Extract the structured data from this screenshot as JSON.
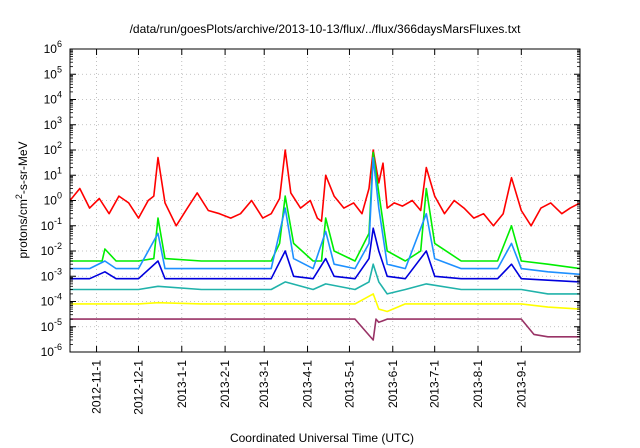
{
  "chart_data": {
    "type": "line",
    "title": "/data/run/goesPlots/archive/2013-10-13/flux/../flux/366daysMarsFluxes.txt",
    "xlabel": "Coordinated Universal Time (UTC)",
    "ylabel": "protons/cm2-s-sr-MeV",
    "ylabel_parts": {
      "base": "protons/cm",
      "sup": "2",
      "rest": "-s-sr-MeV"
    },
    "y_scale": "log",
    "ylim": [
      1e-06,
      1000000.0
    ],
    "y_ticks": [
      {
        "exp": -6,
        "label": "10",
        "sup": "-6"
      },
      {
        "exp": -5,
        "label": "10",
        "sup": "-5"
      },
      {
        "exp": -4,
        "label": "10",
        "sup": "-4"
      },
      {
        "exp": -3,
        "label": "10",
        "sup": "-3"
      },
      {
        "exp": -2,
        "label": "10",
        "sup": "-2"
      },
      {
        "exp": -1,
        "label": "10",
        "sup": "-1"
      },
      {
        "exp": 0,
        "label": "10",
        "sup": "0"
      },
      {
        "exp": 1,
        "label": "10",
        "sup": "1"
      },
      {
        "exp": 2,
        "label": "10",
        "sup": "2"
      },
      {
        "exp": 3,
        "label": "10",
        "sup": "3"
      },
      {
        "exp": 4,
        "label": "10",
        "sup": "4"
      },
      {
        "exp": 5,
        "label": "10",
        "sup": "5"
      },
      {
        "exp": 6,
        "label": "10",
        "sup": "6"
      }
    ],
    "xlim": [
      "2012-10-13",
      "2013-10-13"
    ],
    "x_ticks": [
      "2012-11-1",
      "2012-12-1",
      "2013-1-1",
      "2013-2-1",
      "2013-3-1",
      "2013-4-1",
      "2013-5-1",
      "2013-6-1",
      "2013-7-1",
      "2013-8-1",
      "2013-9-1"
    ],
    "grid": true,
    "legend": "none",
    "series_note": "Seven proton flux channels, values approximate (log scale), sampled about every 5 days; spikes at solar events.",
    "series": [
      {
        "color": "#ff0000",
        "x": [
          "2012-10-13",
          "2012-10-20",
          "2012-10-27",
          "2012-11-03",
          "2012-11-10",
          "2012-11-17",
          "2012-11-24",
          "2012-12-01",
          "2012-12-08",
          "2012-12-12",
          "2012-12-15",
          "2012-12-20",
          "2012-12-28",
          "2013-01-05",
          "2013-01-12",
          "2013-01-20",
          "2013-01-28",
          "2013-02-05",
          "2013-02-12",
          "2013-02-20",
          "2013-02-28",
          "2013-03-06",
          "2013-03-12",
          "2013-03-16",
          "2013-03-20",
          "2013-03-27",
          "2013-04-03",
          "2013-04-08",
          "2013-04-11",
          "2013-04-14",
          "2013-04-20",
          "2013-04-27",
          "2013-05-04",
          "2013-05-10",
          "2013-05-15",
          "2013-05-18",
          "2013-05-22",
          "2013-05-25",
          "2013-05-28",
          "2013-06-02",
          "2013-06-08",
          "2013-06-15",
          "2013-06-21",
          "2013-06-25",
          "2013-07-01",
          "2013-07-08",
          "2013-07-15",
          "2013-07-22",
          "2013-07-29",
          "2013-08-05",
          "2013-08-12",
          "2013-08-19",
          "2013-08-25",
          "2013-09-01",
          "2013-09-08",
          "2013-09-15",
          "2013-09-22",
          "2013-09-30",
          "2013-10-06",
          "2013-10-13"
        ],
        "y": [
          1.0,
          3.0,
          0.5,
          1.2,
          0.3,
          1.5,
          0.8,
          0.2,
          1.0,
          1.5,
          50,
          0.8,
          0.1,
          0.5,
          2.0,
          0.4,
          0.3,
          0.2,
          0.3,
          1.0,
          0.2,
          0.3,
          1.2,
          100,
          2.0,
          0.5,
          1.0,
          0.2,
          0.15,
          10,
          1.5,
          0.5,
          0.8,
          0.3,
          3.0,
          100,
          5.0,
          30,
          0.5,
          0.8,
          0.6,
          1.0,
          0.4,
          20,
          1.5,
          0.3,
          1.0,
          0.5,
          0.2,
          0.3,
          0.1,
          0.3,
          8.0,
          0.4,
          0.1,
          0.5,
          0.8,
          0.3,
          0.5,
          0.8
        ]
      },
      {
        "color": "#00ee00",
        "x": [
          "2012-10-13",
          "2012-10-27",
          "2012-11-05",
          "2012-11-07",
          "2012-11-15",
          "2012-12-01",
          "2012-12-12",
          "2012-12-15",
          "2012-12-20",
          "2013-01-15",
          "2013-02-01",
          "2013-03-06",
          "2013-03-12",
          "2013-03-16",
          "2013-03-22",
          "2013-04-05",
          "2013-04-11",
          "2013-04-14",
          "2013-04-20",
          "2013-05-05",
          "2013-05-15",
          "2013-05-18",
          "2013-05-22",
          "2013-05-28",
          "2013-06-10",
          "2013-06-21",
          "2013-06-25",
          "2013-07-01",
          "2013-07-20",
          "2013-08-15",
          "2013-08-25",
          "2013-09-01",
          "2013-09-20",
          "2013-10-13"
        ],
        "y": [
          0.004,
          0.004,
          0.004,
          0.012,
          0.004,
          0.004,
          0.005,
          0.2,
          0.005,
          0.004,
          0.004,
          0.004,
          0.02,
          1.5,
          0.02,
          0.004,
          0.004,
          0.2,
          0.01,
          0.004,
          0.05,
          80,
          2.0,
          0.01,
          0.004,
          0.01,
          3.0,
          0.02,
          0.004,
          0.004,
          0.1,
          0.004,
          0.003,
          0.002
        ]
      },
      {
        "color": "#1e90ff",
        "x": [
          "2012-10-13",
          "2012-10-27",
          "2012-11-07",
          "2012-11-15",
          "2012-12-01",
          "2012-12-15",
          "2012-12-20",
          "2013-01-15",
          "2013-02-01",
          "2013-03-06",
          "2013-03-16",
          "2013-03-22",
          "2013-04-05",
          "2013-04-14",
          "2013-04-20",
          "2013-05-05",
          "2013-05-15",
          "2013-05-18",
          "2013-05-22",
          "2013-05-28",
          "2013-06-10",
          "2013-06-25",
          "2013-07-01",
          "2013-07-20",
          "2013-08-15",
          "2013-08-25",
          "2013-09-01",
          "2013-09-20",
          "2013-10-13"
        ],
        "y": [
          0.002,
          0.002,
          0.004,
          0.002,
          0.002,
          0.05,
          0.002,
          0.002,
          0.002,
          0.002,
          0.5,
          0.005,
          0.002,
          0.06,
          0.003,
          0.002,
          0.02,
          50,
          0.5,
          0.003,
          0.002,
          0.3,
          0.005,
          0.002,
          0.002,
          0.02,
          0.002,
          0.0015,
          0.0012
        ]
      },
      {
        "color": "#0000dd",
        "x": [
          "2012-10-13",
          "2012-10-27",
          "2012-11-07",
          "2012-11-15",
          "2012-12-01",
          "2012-12-15",
          "2012-12-20",
          "2013-01-15",
          "2013-02-01",
          "2013-03-06",
          "2013-03-16",
          "2013-03-22",
          "2013-04-05",
          "2013-04-14",
          "2013-04-20",
          "2013-05-05",
          "2013-05-15",
          "2013-05-18",
          "2013-05-22",
          "2013-05-28",
          "2013-06-10",
          "2013-06-25",
          "2013-07-01",
          "2013-07-20",
          "2013-08-15",
          "2013-08-25",
          "2013-09-01",
          "2013-09-20",
          "2013-10-13"
        ],
        "y": [
          0.0008,
          0.0008,
          0.0015,
          0.0008,
          0.0008,
          0.004,
          0.0008,
          0.0008,
          0.0008,
          0.0008,
          0.01,
          0.001,
          0.0008,
          0.005,
          0.001,
          0.0008,
          0.005,
          0.08,
          0.01,
          0.001,
          0.0008,
          0.01,
          0.001,
          0.0008,
          0.0008,
          0.003,
          0.0008,
          0.0007,
          0.0006
        ]
      },
      {
        "color": "#20b2aa",
        "x": [
          "2012-10-13",
          "2012-10-27",
          "2012-11-15",
          "2012-12-01",
          "2012-12-15",
          "2013-01-15",
          "2013-02-01",
          "2013-03-06",
          "2013-03-16",
          "2013-04-05",
          "2013-04-14",
          "2013-05-05",
          "2013-05-15",
          "2013-05-18",
          "2013-05-22",
          "2013-05-28",
          "2013-06-10",
          "2013-06-25",
          "2013-07-20",
          "2013-08-15",
          "2013-09-01",
          "2013-09-20",
          "2013-10-13"
        ],
        "y": [
          0.0003,
          0.0003,
          0.0003,
          0.0003,
          0.0004,
          0.0003,
          0.0003,
          0.0003,
          0.0006,
          0.0003,
          0.0005,
          0.0003,
          0.0006,
          0.003,
          0.0006,
          0.0002,
          0.0003,
          0.0005,
          0.0003,
          0.0003,
          0.0003,
          0.0002,
          0.0002
        ]
      },
      {
        "color": "#ffff00",
        "x": [
          "2012-10-13",
          "2012-10-27",
          "2012-11-15",
          "2012-12-01",
          "2012-12-15",
          "2013-01-15",
          "2013-02-01",
          "2013-03-06",
          "2013-04-05",
          "2013-05-05",
          "2013-05-18",
          "2013-05-22",
          "2013-05-28",
          "2013-06-10",
          "2013-07-20",
          "2013-08-15",
          "2013-09-01",
          "2013-09-20",
          "2013-10-13"
        ],
        "y": [
          8e-05,
          8e-05,
          8e-05,
          8e-05,
          9e-05,
          8e-05,
          8e-05,
          8e-05,
          8e-05,
          8e-05,
          0.0002,
          5e-05,
          4e-05,
          8e-05,
          8e-05,
          8e-05,
          8e-05,
          6e-05,
          5e-05
        ]
      },
      {
        "color": "#993366",
        "x": [
          "2012-10-13",
          "2012-10-27",
          "2012-11-15",
          "2012-12-01",
          "2012-12-15",
          "2013-01-15",
          "2013-02-01",
          "2013-03-06",
          "2013-04-05",
          "2013-05-05",
          "2013-05-18",
          "2013-05-20",
          "2013-05-22",
          "2013-05-28",
          "2013-06-10",
          "2013-07-20",
          "2013-08-15",
          "2013-09-01",
          "2013-09-10",
          "2013-09-20",
          "2013-10-13"
        ],
        "y": [
          2e-05,
          2e-05,
          2e-05,
          2e-05,
          2e-05,
          2e-05,
          2e-05,
          2e-05,
          2e-05,
          2e-05,
          3e-06,
          2e-05,
          1.5e-05,
          2e-05,
          2e-05,
          2e-05,
          2e-05,
          2e-05,
          5e-06,
          4e-06,
          4e-06
        ]
      }
    ]
  }
}
